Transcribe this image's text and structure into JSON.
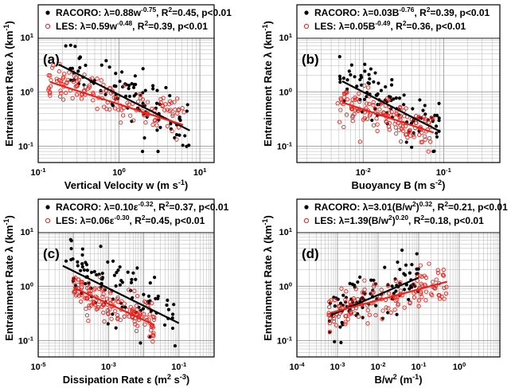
{
  "chart_data": [
    {
      "panel": "(a)",
      "type": "scatter",
      "xlabel": "Vertical Velocity w (m s",
      "xlabel_sup": "-1",
      "xlabel_end": ")",
      "ylabel": "Entrainment Rate λ (km",
      "ylabel_sup": "-1",
      "ylabel_end": ")",
      "xscale": "log",
      "yscale": "log",
      "xlim": [
        0.1,
        15
      ],
      "ylim": [
        0.05,
        40
      ],
      "xticks": [
        {
          "v": 0.1,
          "base": "10",
          "exp": "-1"
        },
        {
          "v": 1,
          "base": "10",
          "exp": "0"
        },
        {
          "v": 10,
          "base": "10",
          "exp": "1"
        }
      ],
      "yticks": [
        {
          "v": 0.1,
          "base": "10",
          "exp": "-1"
        },
        {
          "v": 1,
          "base": "10",
          "exp": "0"
        },
        {
          "v": 10,
          "base": "10",
          "exp": "1"
        }
      ],
      "legend_position": "top",
      "series": [
        {
          "name": "RACORO",
          "color": "#000000",
          "marker": "filled-circle",
          "legend_parts": [
            {
              "t": "RACORO: λ=0.88w"
            },
            {
              "t": "-0.75",
              "sup": true
            },
            {
              "t": ", R"
            },
            {
              "t": "2",
              "sup": true
            },
            {
              "t": "=0.45, p<0.01"
            }
          ],
          "fit": {
            "a": 0.88,
            "b": -0.75,
            "x_range": [
              0.18,
              7.5
            ]
          },
          "scatter": {
            "x_range": [
              0.2,
              7.5
            ],
            "center": 0.5,
            "spread": 0.45,
            "n": 95,
            "seed": 11
          },
          "points": [
            [
              0.2,
              1.1
            ],
            [
              0.5,
              1.6
            ],
            [
              1.0,
              0.9
            ],
            [
              2.0,
              0.5
            ],
            [
              4.0,
              0.3
            ],
            [
              7.0,
              0.17
            ]
          ]
        },
        {
          "name": "LES",
          "color": "#e8231c",
          "marker": "open-circle",
          "legend_parts": [
            {
              "t": "LES: λ=0.59w"
            },
            {
              "t": "-0.48",
              "sup": true
            },
            {
              "t": ", R"
            },
            {
              "t": "2",
              "sup": true
            },
            {
              "t": "=0.39, p<0.01"
            }
          ],
          "fit": {
            "a": 0.59,
            "b": -0.48,
            "x_range": [
              0.14,
              6.2
            ]
          },
          "scatter": {
            "x_range": [
              0.13,
              6.5
            ],
            "center": 0.5,
            "spread": 0.3,
            "n": 150,
            "seed": 23
          },
          "points": [
            [
              0.15,
              1.3
            ],
            [
              0.5,
              0.8
            ],
            [
              1.0,
              0.6
            ],
            [
              2.0,
              0.45
            ],
            [
              4.0,
              0.25
            ],
            [
              6.0,
              0.2
            ]
          ]
        }
      ]
    },
    {
      "panel": "(b)",
      "type": "scatter",
      "xlabel": "Buoyancy B (m s",
      "xlabel_sup": "-2",
      "xlabel_end": ")",
      "ylabel": "Entrainment Rate λ (km",
      "ylabel_sup": "-1",
      "ylabel_end": ")",
      "xscale": "log",
      "yscale": "log",
      "xlim": [
        0.0015,
        0.5
      ],
      "ylim": [
        0.05,
        40
      ],
      "xticks": [
        {
          "v": 0.01,
          "base": "10",
          "exp": "-2"
        },
        {
          "v": 0.1,
          "base": "10",
          "exp": "-1"
        }
      ],
      "yticks": [
        {
          "v": 0.1,
          "base": "10",
          "exp": "-1"
        },
        {
          "v": 1,
          "base": "10",
          "exp": "0"
        },
        {
          "v": 10,
          "base": "10",
          "exp": "1"
        }
      ],
      "legend_position": "top",
      "series": [
        {
          "name": "RACORO",
          "color": "#000000",
          "marker": "filled-circle",
          "legend_parts": [
            {
              "t": "RACORO: λ=0.03B"
            },
            {
              "t": "-0.76",
              "sup": true
            },
            {
              "t": ", R"
            },
            {
              "t": "2",
              "sup": true
            },
            {
              "t": "=0.39, p<0.01"
            }
          ],
          "fit": {
            "a": 0.03,
            "b": -0.76,
            "x_range": [
              0.0055,
              0.088
            ]
          },
          "scatter": {
            "x_range": [
              0.005,
              0.09
            ],
            "center": 0.6,
            "spread": 0.4,
            "n": 95,
            "seed": 37
          },
          "points": [
            [
              0.005,
              1.0
            ],
            [
              0.01,
              0.9
            ],
            [
              0.02,
              0.6
            ],
            [
              0.05,
              0.3
            ],
            [
              0.09,
              0.18
            ]
          ]
        },
        {
          "name": "LES",
          "color": "#e8231c",
          "marker": "open-circle",
          "legend_parts": [
            {
              "t": "LES: λ=0.05B"
            },
            {
              "t": "-0.49",
              "sup": true
            },
            {
              "t": ", R"
            },
            {
              "t": "2",
              "sup": true
            },
            {
              "t": "=0.36, p<0.01"
            }
          ],
          "fit": {
            "a": 0.05,
            "b": -0.49,
            "x_range": [
              0.0055,
              0.075
            ]
          },
          "scatter": {
            "x_range": [
              0.0048,
              0.075
            ],
            "center": 0.0,
            "spread": 0.28,
            "n": 150,
            "seed": 41
          },
          "points": [
            [
              0.005,
              0.6
            ],
            [
              0.01,
              0.5
            ],
            [
              0.02,
              0.35
            ],
            [
              0.05,
              0.22
            ],
            [
              0.07,
              0.18
            ]
          ]
        }
      ]
    },
    {
      "panel": "(c)",
      "type": "scatter",
      "xlabel": "Dissipation Rate ε (m",
      "xlabel_sup": "2",
      "xlabel_end": " s",
      "xlabel_sup2": "-3",
      "xlabel_end2": ")",
      "ylabel": "Entrainment Rate λ (km",
      "ylabel_sup": "-1",
      "ylabel_end": ")",
      "xscale": "log",
      "yscale": "log",
      "xlim": [
        1e-05,
        1
      ],
      "ylim": [
        0.05,
        40
      ],
      "xticks": [
        {
          "v": 1e-05,
          "base": "10",
          "exp": "-5"
        },
        {
          "v": 0.001,
          "base": "10",
          "exp": "-3"
        },
        {
          "v": 0.1,
          "base": "10",
          "exp": "-1"
        }
      ],
      "yticks": [
        {
          "v": 0.1,
          "base": "10",
          "exp": "-1"
        },
        {
          "v": 1,
          "base": "10",
          "exp": "0"
        },
        {
          "v": 10,
          "base": "10",
          "exp": "1"
        }
      ],
      "legend_position": "top",
      "series": [
        {
          "name": "RACORO",
          "color": "#000000",
          "marker": "filled-circle",
          "legend_parts": [
            {
              "t": "RACORO: λ=0.10ε"
            },
            {
              "t": "-0.32",
              "sup": true
            },
            {
              "t": ", R"
            },
            {
              "t": "2",
              "sup": true
            },
            {
              "t": "=0.37, p<0.01"
            }
          ],
          "fit": {
            "a": 0.1,
            "b": -0.32,
            "x_range": [
              5e-05,
              0.1
            ]
          },
          "scatter": {
            "x_range": [
              6e-05,
              0.1
            ],
            "center": 0.4,
            "spread": 0.45,
            "n": 95,
            "seed": 53
          },
          "points": [
            [
              0.0001,
              0.9
            ],
            [
              0.001,
              0.9
            ],
            [
              0.01,
              0.4
            ],
            [
              0.1,
              0.25
            ]
          ]
        },
        {
          "name": "LES",
          "color": "#e8231c",
          "marker": "open-circle",
          "legend_parts": [
            {
              "t": "LES: λ=0.06ε"
            },
            {
              "t": "-0.30",
              "sup": true
            },
            {
              "t": ", R"
            },
            {
              "t": "2",
              "sup": true
            },
            {
              "t": "=0.45, p<0.01"
            }
          ],
          "fit": {
            "a": 0.06,
            "b": -0.3,
            "x_range": [
              0.0001,
              0.02
            ]
          },
          "scatter": {
            "x_range": [
              0.0001,
              0.02
            ],
            "center": 0.0,
            "spread": 0.28,
            "n": 150,
            "seed": 67
          },
          "points": [
            [
              0.0001,
              0.6
            ],
            [
              0.001,
              0.4
            ],
            [
              0.01,
              0.2
            ],
            [
              0.02,
              0.15
            ]
          ]
        }
      ]
    },
    {
      "panel": "(d)",
      "type": "scatter",
      "xlabel": "B/w",
      "xlabel_sup": "2",
      "xlabel_end": " (m",
      "xlabel_sup2": "-1",
      "xlabel_end2": ")",
      "ylabel": "Entrainment Rate λ (km",
      "ylabel_sup": "-1",
      "ylabel_end": ")",
      "xscale": "log",
      "yscale": "log",
      "xlim": [
        0.0001,
        10
      ],
      "ylim": [
        0.05,
        40
      ],
      "xticks": [
        {
          "v": 0.0001,
          "base": "10",
          "exp": "-4"
        },
        {
          "v": 0.001,
          "base": "10",
          "exp": "-3"
        },
        {
          "v": 0.01,
          "base": "10",
          "exp": "-2"
        },
        {
          "v": 0.1,
          "base": "10",
          "exp": "-1"
        },
        {
          "v": 1,
          "base": "10",
          "exp": "0"
        }
      ],
      "yticks": [
        {
          "v": 0.1,
          "base": "10",
          "exp": "-1"
        },
        {
          "v": 1,
          "base": "10",
          "exp": "0"
        },
        {
          "v": 10,
          "base": "10",
          "exp": "1"
        }
      ],
      "legend_position": "top",
      "series": [
        {
          "name": "RACORO",
          "color": "#000000",
          "marker": "filled-circle",
          "legend_parts": [
            {
              "t": "RACORO: λ=3.01(B/w"
            },
            {
              "t": "2",
              "sup": true
            },
            {
              "t": ")"
            },
            {
              "t": "0.32",
              "sup": true
            },
            {
              "t": ", R"
            },
            {
              "t": "2",
              "sup": true
            },
            {
              "t": "=0.21, p<0.01"
            }
          ],
          "fit": {
            "a": 3.01,
            "b": 0.32,
            "x_range": [
              0.0007,
              0.1
            ]
          },
          "scatter": {
            "x_range": [
              0.0006,
              0.1
            ],
            "center": 0.15,
            "spread": 0.4,
            "n": 95,
            "seed": 79
          },
          "points": [
            [
              0.001,
              0.3
            ],
            [
              0.01,
              0.6
            ],
            [
              0.05,
              1.2
            ],
            [
              0.1,
              1.5
            ]
          ]
        },
        {
          "name": "LES",
          "color": "#e8231c",
          "marker": "open-circle",
          "legend_parts": [
            {
              "t": "LES: λ=1.39(B/w"
            },
            {
              "t": "2",
              "sup": true
            },
            {
              "t": ")"
            },
            {
              "t": "0.20",
              "sup": true
            },
            {
              "t": ", R"
            },
            {
              "t": "2",
              "sup": true
            },
            {
              "t": "=0.18, p<0.01"
            }
          ],
          "fit": {
            "a": 1.39,
            "b": 0.2,
            "x_range": [
              0.0007,
              0.5
            ]
          },
          "scatter": {
            "x_range": [
              0.0006,
              0.5
            ],
            "center": 0.0,
            "spread": 0.28,
            "n": 150,
            "seed": 89
          },
          "points": [
            [
              0.001,
              0.35
            ],
            [
              0.01,
              0.5
            ],
            [
              0.1,
              0.8
            ],
            [
              0.5,
              1.2
            ]
          ]
        }
      ]
    }
  ]
}
